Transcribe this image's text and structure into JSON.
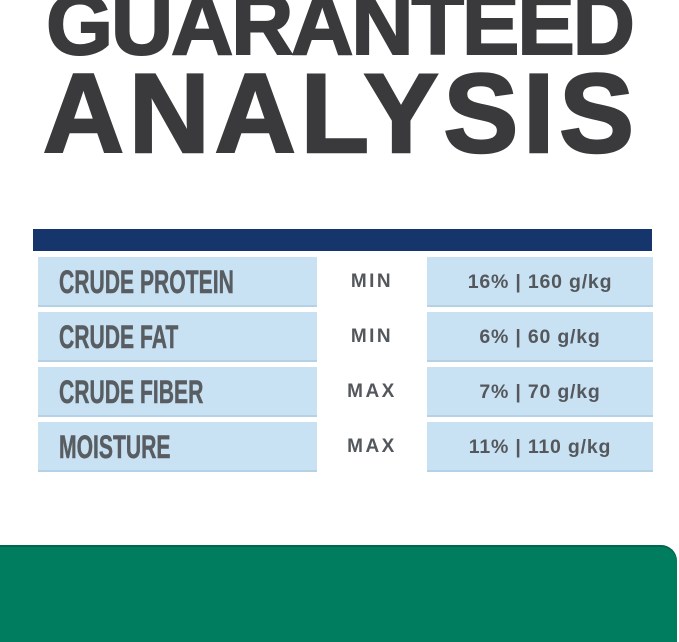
{
  "title": {
    "line1": "GUARANTEED",
    "line2": "ANALYSIS"
  },
  "analysis_table": {
    "rows": [
      {
        "nutrient": "CRUDE PROTEIN",
        "qualifier": "MIN",
        "value": "16% | 160 g/kg"
      },
      {
        "nutrient": "CRUDE FAT",
        "qualifier": "MIN",
        "value": "6% | 60 g/kg"
      },
      {
        "nutrient": "CRUDE FIBER",
        "qualifier": "MAX",
        "value": "7% | 70 g/kg"
      },
      {
        "nutrient": "MOISTURE",
        "qualifier": "MAX",
        "value": "11% | 110 g/kg"
      }
    ]
  },
  "colors": {
    "title_text": "#3a3a3c",
    "divider_navy": "#16356c",
    "cell_light_blue": "#c9e2f3",
    "table_text_gray": "#54585c",
    "footer_green": "#007d5e",
    "background": "#ffffff"
  }
}
